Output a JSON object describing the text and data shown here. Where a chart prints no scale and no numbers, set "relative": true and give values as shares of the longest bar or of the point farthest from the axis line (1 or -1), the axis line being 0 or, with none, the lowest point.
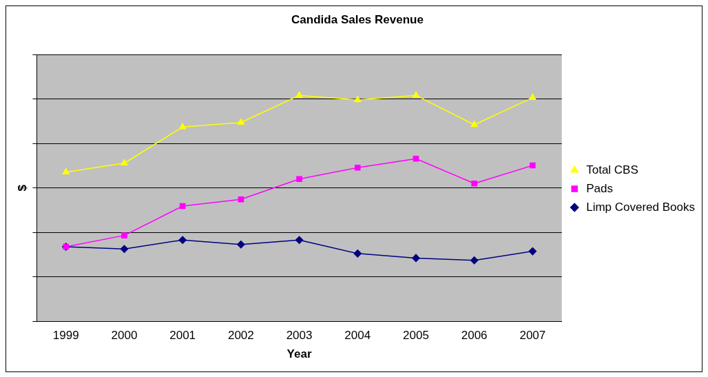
{
  "chart_data": {
    "type": "line",
    "title": "Candida Sales Revenue",
    "xlabel": "Year",
    "ylabel": "$",
    "relative": true,
    "grid": "y",
    "legend": "right",
    "categories": [
      "1999",
      "2000",
      "2001",
      "2002",
      "2003",
      "2004",
      "2005",
      "2006",
      "2007"
    ],
    "series": [
      {
        "name": "Limp Covered Books",
        "color": "#000080",
        "marker": "diamond",
        "values": [
          0.33,
          0.32,
          0.36,
          0.34,
          0.36,
          0.3,
          0.28,
          0.27,
          0.31
        ]
      },
      {
        "name": "Pads",
        "color": "#ff00ff",
        "marker": "square",
        "values": [
          0.33,
          0.38,
          0.51,
          0.54,
          0.63,
          0.68,
          0.72,
          0.61,
          0.69
        ]
      },
      {
        "name": "Total CBS",
        "color": "#ffff00",
        "marker": "triangle",
        "values": [
          0.66,
          0.7,
          0.86,
          0.88,
          1.0,
          0.98,
          1.0,
          0.87,
          0.99
        ]
      }
    ]
  }
}
